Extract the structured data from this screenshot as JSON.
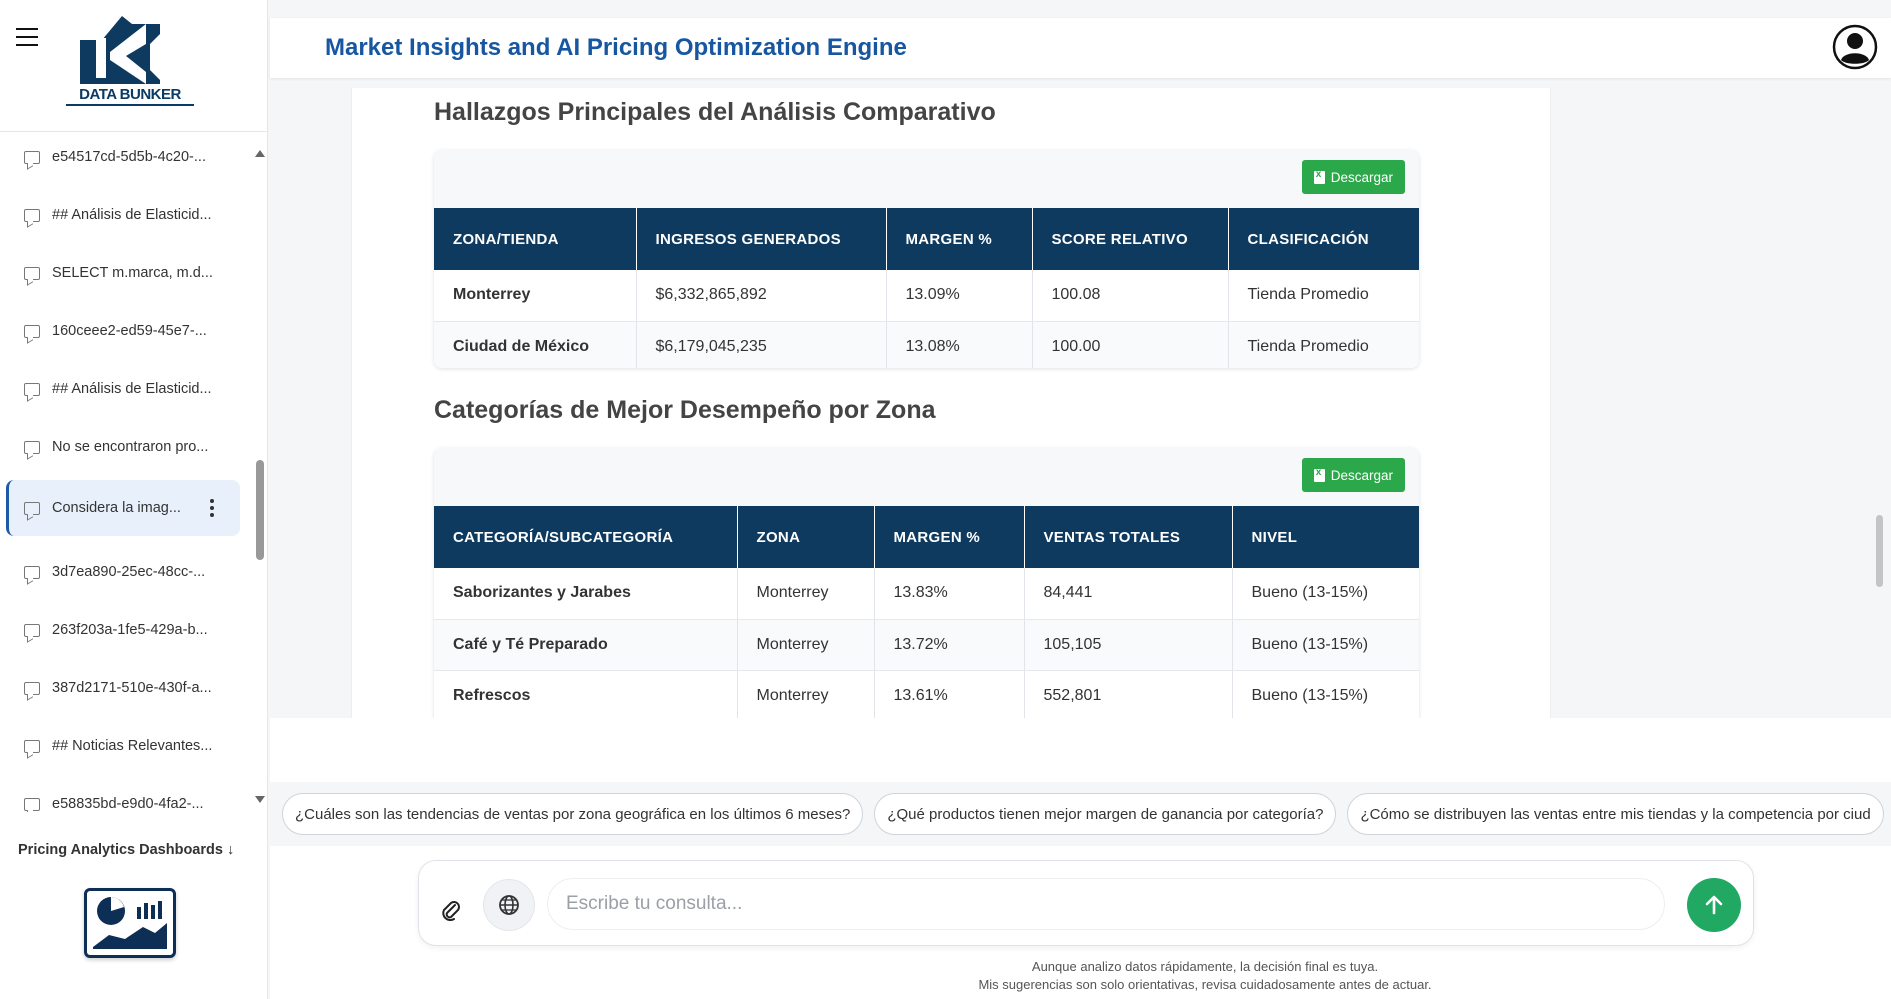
{
  "sidebar": {
    "logo_text": "DATA BUNKER",
    "history": [
      {
        "label": "e54517cd-5d5b-4c20-...",
        "top": 0
      },
      {
        "label": "## Análisis de Elasticid...",
        "top": 1
      },
      {
        "label": "SELECT m.marca, m.d...",
        "top": 2
      },
      {
        "label": "160ceee2-ed59-45e7-...",
        "top": 3
      },
      {
        "label": "## Análisis de Elasticid...",
        "top": 4
      },
      {
        "label": "No se encontraron pro...",
        "top": 5
      },
      {
        "label": "Considera la imag...",
        "top": 6
      },
      {
        "label": "3d7ea890-25ec-48cc-...",
        "top": 7
      },
      {
        "label": "263f203a-1fe5-429a-b...",
        "top": 8
      },
      {
        "label": "387d2171-510e-430f-a...",
        "top": 9
      },
      {
        "label": "## Noticias Relevantes...",
        "top": 10
      },
      {
        "label": "e58835bd-e9d0-4fa2-...",
        "top": 11
      }
    ],
    "dashboards_label": "Pricing Analytics Dashboards ↓"
  },
  "header": {
    "title": "Market Insights and AI Pricing Optimization Engine"
  },
  "content": {
    "section1": {
      "title": "Hallazgos Principales del Análisis Comparativo",
      "download_label": "Descargar",
      "columns": [
        "ZONA/TIENDA",
        "INGRESOS GENERADOS",
        "MARGEN %",
        "SCORE RELATIVO",
        "CLASIFICACIÓN"
      ],
      "rows": [
        [
          "Monterrey",
          "$6,332,865,892",
          "13.09%",
          "100.08",
          "Tienda Promedio"
        ],
        [
          "Ciudad de México",
          "$6,179,045,235",
          "13.08%",
          "100.00",
          "Tienda Promedio"
        ]
      ]
    },
    "section2": {
      "title": "Categorías de Mejor Desempeño por Zona",
      "download_label": "Descargar",
      "columns": [
        "CATEGORÍA/SUBCATEGORÍA",
        "ZONA",
        "MARGEN %",
        "VENTAS TOTALES",
        "NIVEL"
      ],
      "rows": [
        [
          "Saborizantes y Jarabes",
          "Monterrey",
          "13.83%",
          "84,441",
          "Bueno (13-15%)"
        ],
        [
          "Café y Té Preparado",
          "Monterrey",
          "13.72%",
          "105,105",
          "Bueno (13-15%)"
        ],
        [
          "Refrescos",
          "Monterrey",
          "13.61%",
          "552,801",
          "Bueno (13-15%)"
        ]
      ]
    }
  },
  "suggestions": [
    "¿Cuáles son las tendencias de ventas por zona geográfica en los últimos 6 meses?",
    "¿Qué productos tienen mejor margen de ganancia por categoría?",
    "¿Cómo se distribuyen las ventas entre mis tiendas y la competencia por ciud"
  ],
  "input": {
    "placeholder": "Escribe tu consulta..."
  },
  "disclaimer": {
    "line1": "Aunque analizo datos rápidamente, la decisión final es tuya.",
    "line2": "Mis sugerencias son solo orientativas, revisa cuidadosamente antes de actuar."
  }
}
